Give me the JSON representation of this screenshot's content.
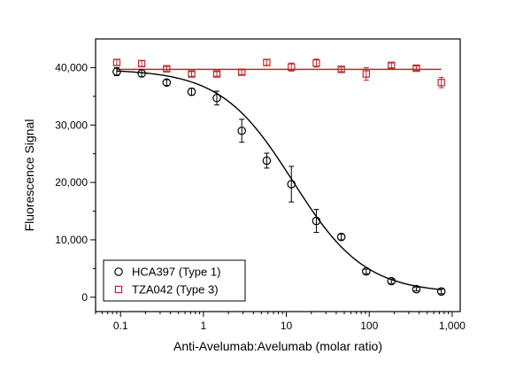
{
  "chart_data": {
    "type": "scatter",
    "xlabel": "Anti-Avelumab:Avelumab (molar ratio)",
    "ylabel": "Fluorescence Signal",
    "xscale": "log",
    "xlim": [
      0.05,
      1250
    ],
    "ylim": [
      -2500,
      45000
    ],
    "xticks": [
      {
        "value": 0.1,
        "label": "0.1"
      },
      {
        "value": 1,
        "label": "1"
      },
      {
        "value": 10,
        "label": "10"
      },
      {
        "value": 100,
        "label": "100"
      },
      {
        "value": 1000,
        "label": "1,000"
      }
    ],
    "yticks": [
      {
        "value": 0,
        "label": "0"
      },
      {
        "value": 10000,
        "label": "10,000"
      },
      {
        "value": 20000,
        "label": "20,000"
      },
      {
        "value": 30000,
        "label": "30,000"
      },
      {
        "value": 40000,
        "label": "40,000"
      }
    ],
    "legend": {
      "position": "bottom-left"
    },
    "series": [
      {
        "name": "HCA397 (Type 1)",
        "marker": "circle",
        "color": "#000000",
        "x": [
          0.09,
          0.18,
          0.36,
          0.72,
          1.45,
          2.9,
          5.8,
          11.5,
          23,
          46,
          92,
          185,
          370,
          740
        ],
        "y": [
          39300,
          39000,
          37400,
          35800,
          34700,
          29000,
          23800,
          19700,
          13300,
          10500,
          4500,
          2800,
          1400,
          1000
        ],
        "err": [
          700,
          600,
          500,
          600,
          1200,
          2000,
          1300,
          3100,
          2000,
          500,
          400,
          400,
          300,
          400
        ],
        "fit": {
          "type": "sigmoid",
          "top": 39700,
          "bottom": 700,
          "ec50": 12,
          "hill": 1.0,
          "color": "#000000"
        }
      },
      {
        "name": "TZA042 (Type 3)",
        "marker": "square",
        "color": "#c0282d",
        "x": [
          0.09,
          0.18,
          0.36,
          0.72,
          1.45,
          2.9,
          5.8,
          11.5,
          23,
          46,
          92,
          185,
          370,
          740
        ],
        "y": [
          40900,
          40700,
          39800,
          38900,
          38900,
          39200,
          40900,
          40100,
          40800,
          39700,
          38900,
          40400,
          39900,
          37400
        ],
        "err": [
          500,
          500,
          400,
          400,
          400,
          400,
          500,
          700,
          700,
          400,
          1100,
          400,
          400,
          900
        ],
        "fit": {
          "type": "constant",
          "value": 39700,
          "color": "#c0282d"
        }
      }
    ]
  }
}
